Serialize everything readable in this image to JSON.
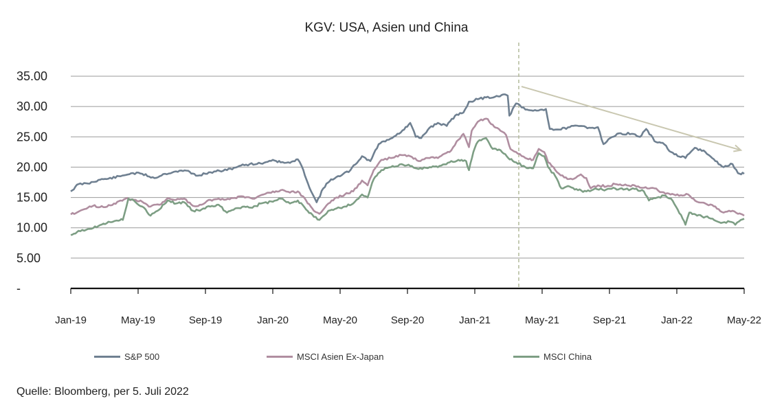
{
  "chart_data": {
    "type": "line",
    "title": "KGV: USA, Asien und China",
    "source": "Quelle: Bloomberg, per 5. Juli 2022",
    "x_ticks": [
      "Jan-19",
      "May-19",
      "Sep-19",
      "Jan-20",
      "May-20",
      "Sep-20",
      "Jan-21",
      "May-21",
      "Sep-21",
      "Jan-22",
      "May-22"
    ],
    "y_ticks": [
      "-",
      "5.00",
      "10.00",
      "15.00",
      "20.00",
      "25.00",
      "30.00",
      "35.00"
    ],
    "ylim": [
      0,
      35
    ],
    "xlim": [
      "2019-01-01",
      "2022-05-01"
    ],
    "grid": "horizontal",
    "legend_position": "bottom",
    "series": [
      {
        "name": "S&P 500",
        "color": "#6f8091",
        "points": [
          [
            "2019-01-01",
            16.0
          ],
          [
            "2019-01-15",
            17.2
          ],
          [
            "2019-02-01",
            17.3
          ],
          [
            "2019-02-20",
            17.9
          ],
          [
            "2019-03-10",
            18.1
          ],
          [
            "2019-04-01",
            18.5
          ],
          [
            "2019-04-20",
            19.0
          ],
          [
            "2019-05-10",
            18.9
          ],
          [
            "2019-06-01",
            18.2
          ],
          [
            "2019-06-20",
            18.9
          ],
          [
            "2019-07-10",
            19.3
          ],
          [
            "2019-08-01",
            19.4
          ],
          [
            "2019-08-15",
            18.6
          ],
          [
            "2019-09-01",
            18.9
          ],
          [
            "2019-09-20",
            19.3
          ],
          [
            "2019-10-10",
            19.5
          ],
          [
            "2019-11-01",
            20.2
          ],
          [
            "2019-11-20",
            20.5
          ],
          [
            "2019-12-10",
            20.6
          ],
          [
            "2020-01-01",
            21.2
          ],
          [
            "2020-01-15",
            20.8
          ],
          [
            "2020-02-01",
            20.7
          ],
          [
            "2020-02-15",
            21.3
          ],
          [
            "2020-02-25",
            19.5
          ],
          [
            "2020-03-10",
            16.0
          ],
          [
            "2020-03-20",
            14.2
          ],
          [
            "2020-04-01",
            16.5
          ],
          [
            "2020-04-15",
            18.0
          ],
          [
            "2020-05-01",
            18.5
          ],
          [
            "2020-05-20",
            19.5
          ],
          [
            "2020-06-10",
            21.8
          ],
          [
            "2020-06-25",
            21.0
          ],
          [
            "2020-07-10",
            23.8
          ],
          [
            "2020-07-25",
            24.5
          ],
          [
            "2020-08-10",
            25.2
          ],
          [
            "2020-08-25",
            26.2
          ],
          [
            "2020-09-05",
            27.3
          ],
          [
            "2020-09-15",
            25.0
          ],
          [
            "2020-09-25",
            24.8
          ],
          [
            "2020-10-10",
            26.5
          ],
          [
            "2020-10-25",
            27.3
          ],
          [
            "2020-11-10",
            26.8
          ],
          [
            "2020-11-25",
            28.5
          ],
          [
            "2020-12-10",
            29.0
          ],
          [
            "2020-12-20",
            30.8
          ],
          [
            "2021-01-05",
            31.2
          ],
          [
            "2021-01-20",
            31.5
          ],
          [
            "2021-02-05",
            31.6
          ],
          [
            "2021-02-20",
            32.0
          ],
          [
            "2021-02-28",
            31.8
          ],
          [
            "2021-03-03",
            28.5
          ],
          [
            "2021-03-15",
            30.5
          ],
          [
            "2021-04-01",
            29.5
          ],
          [
            "2021-04-15",
            29.3
          ],
          [
            "2021-05-01",
            29.5
          ],
          [
            "2021-05-08",
            29.6
          ],
          [
            "2021-05-15",
            26.3
          ],
          [
            "2021-06-01",
            26.2
          ],
          [
            "2021-06-20",
            26.6
          ],
          [
            "2021-07-10",
            26.8
          ],
          [
            "2021-07-25",
            26.5
          ],
          [
            "2021-08-10",
            26.6
          ],
          [
            "2021-08-20",
            23.8
          ],
          [
            "2021-09-01",
            24.8
          ],
          [
            "2021-09-20",
            25.6
          ],
          [
            "2021-10-10",
            25.5
          ],
          [
            "2021-10-25",
            25.0
          ],
          [
            "2021-11-05",
            26.3
          ],
          [
            "2021-11-20",
            24.3
          ],
          [
            "2021-12-05",
            24.0
          ],
          [
            "2021-12-20",
            22.5
          ],
          [
            "2022-01-01",
            21.8
          ],
          [
            "2022-01-15",
            21.5
          ],
          [
            "2022-02-01",
            23.2
          ],
          [
            "2022-02-20",
            22.5
          ],
          [
            "2022-03-10",
            21.0
          ],
          [
            "2022-03-25",
            20.0
          ],
          [
            "2022-04-10",
            20.5
          ],
          [
            "2022-04-20",
            19.0
          ],
          [
            "2022-05-01",
            18.9
          ]
        ]
      },
      {
        "name": "MSCI Asien Ex-Japan",
        "color": "#b08ea0",
        "points": [
          [
            "2019-01-01",
            12.2
          ],
          [
            "2019-01-20",
            12.9
          ],
          [
            "2019-02-10",
            13.6
          ],
          [
            "2019-03-01",
            13.4
          ],
          [
            "2019-03-20",
            14.0
          ],
          [
            "2019-04-10",
            14.8
          ],
          [
            "2019-04-25",
            14.6
          ],
          [
            "2019-05-10",
            14.3
          ],
          [
            "2019-05-25",
            13.5
          ],
          [
            "2019-06-10",
            13.8
          ],
          [
            "2019-06-25",
            14.9
          ],
          [
            "2019-07-10",
            14.6
          ],
          [
            "2019-07-25",
            14.8
          ],
          [
            "2019-08-10",
            13.6
          ],
          [
            "2019-08-25",
            13.8
          ],
          [
            "2019-09-10",
            14.6
          ],
          [
            "2019-09-25",
            14.8
          ],
          [
            "2019-10-15",
            14.7
          ],
          [
            "2019-11-05",
            15.2
          ],
          [
            "2019-11-25",
            14.8
          ],
          [
            "2019-12-15",
            15.5
          ],
          [
            "2020-01-01",
            16.0
          ],
          [
            "2020-01-15",
            16.2
          ],
          [
            "2020-02-01",
            15.8
          ],
          [
            "2020-02-15",
            16.0
          ],
          [
            "2020-03-01",
            14.5
          ],
          [
            "2020-03-15",
            12.8
          ],
          [
            "2020-03-25",
            12.3
          ],
          [
            "2020-04-10",
            14.0
          ],
          [
            "2020-04-25",
            15.0
          ],
          [
            "2020-05-10",
            15.5
          ],
          [
            "2020-05-25",
            16.0
          ],
          [
            "2020-06-10",
            17.8
          ],
          [
            "2020-06-20",
            17.0
          ],
          [
            "2020-07-01",
            19.5
          ],
          [
            "2020-07-15",
            21.2
          ],
          [
            "2020-08-01",
            21.5
          ],
          [
            "2020-08-20",
            22.0
          ],
          [
            "2020-09-05",
            21.8
          ],
          [
            "2020-09-20",
            21.0
          ],
          [
            "2020-10-10",
            21.5
          ],
          [
            "2020-10-25",
            21.5
          ],
          [
            "2020-11-15",
            22.5
          ],
          [
            "2020-12-01",
            24.5
          ],
          [
            "2020-12-10",
            25.5
          ],
          [
            "2020-12-20",
            23.3
          ],
          [
            "2020-12-25",
            26.0
          ],
          [
            "2021-01-05",
            27.5
          ],
          [
            "2021-01-20",
            28.0
          ],
          [
            "2021-02-01",
            27.0
          ],
          [
            "2021-02-15",
            26.0
          ],
          [
            "2021-02-25",
            25.3
          ],
          [
            "2021-03-05",
            23.0
          ],
          [
            "2021-03-15",
            22.5
          ],
          [
            "2021-04-01",
            21.5
          ],
          [
            "2021-04-15",
            21.2
          ],
          [
            "2021-04-25",
            23.0
          ],
          [
            "2021-05-05",
            22.5
          ],
          [
            "2021-05-12",
            20.8
          ],
          [
            "2021-05-25",
            19.5
          ],
          [
            "2021-06-10",
            18.3
          ],
          [
            "2021-06-25",
            18.0
          ],
          [
            "2021-07-10",
            18.8
          ],
          [
            "2021-07-20",
            18.2
          ],
          [
            "2021-07-28",
            16.5
          ],
          [
            "2021-08-10",
            17.0
          ],
          [
            "2021-08-25",
            16.8
          ],
          [
            "2021-09-10",
            17.2
          ],
          [
            "2021-09-25",
            17.0
          ],
          [
            "2021-10-15",
            17.0
          ],
          [
            "2021-11-01",
            16.6
          ],
          [
            "2021-11-20",
            16.5
          ],
          [
            "2021-12-10",
            15.6
          ],
          [
            "2021-12-25",
            15.5
          ],
          [
            "2022-01-10",
            15.3
          ],
          [
            "2022-01-20",
            15.5
          ],
          [
            "2022-02-05",
            14.3
          ],
          [
            "2022-02-20",
            14.0
          ],
          [
            "2022-03-10",
            13.5
          ],
          [
            "2022-03-25",
            12.5
          ],
          [
            "2022-04-10",
            12.8
          ],
          [
            "2022-04-20",
            12.3
          ],
          [
            "2022-05-01",
            12.0
          ]
        ]
      },
      {
        "name": "MSCI China",
        "color": "#7d9e84",
        "points": [
          [
            "2019-01-01",
            8.8
          ],
          [
            "2019-01-15",
            9.5
          ],
          [
            "2019-02-01",
            9.8
          ],
          [
            "2019-02-20",
            10.3
          ],
          [
            "2019-03-10",
            11.0
          ],
          [
            "2019-03-25",
            11.2
          ],
          [
            "2019-04-05",
            11.3
          ],
          [
            "2019-04-15",
            14.8
          ],
          [
            "2019-04-25",
            14.5
          ],
          [
            "2019-05-10",
            13.5
          ],
          [
            "2019-05-25",
            12.0
          ],
          [
            "2019-06-10",
            13.0
          ],
          [
            "2019-06-25",
            14.5
          ],
          [
            "2019-07-10",
            14.0
          ],
          [
            "2019-07-25",
            14.2
          ],
          [
            "2019-08-10",
            12.8
          ],
          [
            "2019-08-25",
            13.0
          ],
          [
            "2019-09-10",
            13.5
          ],
          [
            "2019-09-25",
            13.8
          ],
          [
            "2019-10-10",
            12.5
          ],
          [
            "2019-10-25",
            13.2
          ],
          [
            "2019-11-10",
            13.5
          ],
          [
            "2019-11-25",
            13.3
          ],
          [
            "2019-12-10",
            14.0
          ],
          [
            "2020-01-01",
            14.3
          ],
          [
            "2020-01-15",
            14.8
          ],
          [
            "2020-02-01",
            14.0
          ],
          [
            "2020-02-15",
            14.5
          ],
          [
            "2020-03-01",
            13.0
          ],
          [
            "2020-03-15",
            11.8
          ],
          [
            "2020-03-25",
            11.3
          ],
          [
            "2020-04-10",
            12.8
          ],
          [
            "2020-04-25",
            13.2
          ],
          [
            "2020-05-10",
            13.5
          ],
          [
            "2020-05-25",
            14.0
          ],
          [
            "2020-06-10",
            15.5
          ],
          [
            "2020-06-20",
            15.0
          ],
          [
            "2020-07-01",
            18.0
          ],
          [
            "2020-07-15",
            19.5
          ],
          [
            "2020-08-01",
            20.0
          ],
          [
            "2020-08-20",
            20.5
          ],
          [
            "2020-09-05",
            20.2
          ],
          [
            "2020-09-20",
            19.7
          ],
          [
            "2020-10-10",
            20.0
          ],
          [
            "2020-10-25",
            20.0
          ],
          [
            "2020-11-15",
            20.8
          ],
          [
            "2020-12-01",
            21.2
          ],
          [
            "2020-12-15",
            21.0
          ],
          [
            "2020-12-20",
            19.5
          ],
          [
            "2020-12-28",
            22.5
          ],
          [
            "2021-01-05",
            24.2
          ],
          [
            "2021-01-20",
            24.8
          ],
          [
            "2021-02-01",
            23.0
          ],
          [
            "2021-02-15",
            22.8
          ],
          [
            "2021-03-01",
            21.5
          ],
          [
            "2021-03-15",
            20.8
          ],
          [
            "2021-04-01",
            20.0
          ],
          [
            "2021-04-15",
            19.8
          ],
          [
            "2021-04-25",
            22.3
          ],
          [
            "2021-05-05",
            21.8
          ],
          [
            "2021-05-12",
            20.0
          ],
          [
            "2021-05-25",
            18.5
          ],
          [
            "2021-06-05",
            16.5
          ],
          [
            "2021-06-20",
            16.8
          ],
          [
            "2021-07-05",
            16.2
          ],
          [
            "2021-07-20",
            16.0
          ],
          [
            "2021-08-05",
            16.5
          ],
          [
            "2021-08-25",
            16.3
          ],
          [
            "2021-09-10",
            16.5
          ],
          [
            "2021-09-25",
            16.3
          ],
          [
            "2021-10-15",
            16.4
          ],
          [
            "2021-11-01",
            16.0
          ],
          [
            "2021-11-10",
            14.5
          ],
          [
            "2021-11-25",
            15.0
          ],
          [
            "2021-12-10",
            15.3
          ],
          [
            "2021-12-20",
            14.8
          ],
          [
            "2022-01-01",
            13.0
          ],
          [
            "2022-01-10",
            11.5
          ],
          [
            "2022-01-15",
            10.5
          ],
          [
            "2022-01-22",
            12.5
          ],
          [
            "2022-02-05",
            12.0
          ],
          [
            "2022-02-20",
            11.8
          ],
          [
            "2022-03-05",
            11.5
          ],
          [
            "2022-03-20",
            10.8
          ],
          [
            "2022-04-05",
            11.0
          ],
          [
            "2022-04-15",
            10.5
          ],
          [
            "2022-04-25",
            11.3
          ],
          [
            "2022-05-01",
            11.5
          ]
        ]
      }
    ],
    "annotations": {
      "vertical_dashed_line_date": "2021-03-20",
      "trend_arrow": {
        "from": [
          "2021-03-25",
          33.3
        ],
        "to": [
          "2022-04-25",
          22.8
        ],
        "color": "#c9c7b0"
      },
      "dashed_line_color": "#b7bea0"
    }
  }
}
